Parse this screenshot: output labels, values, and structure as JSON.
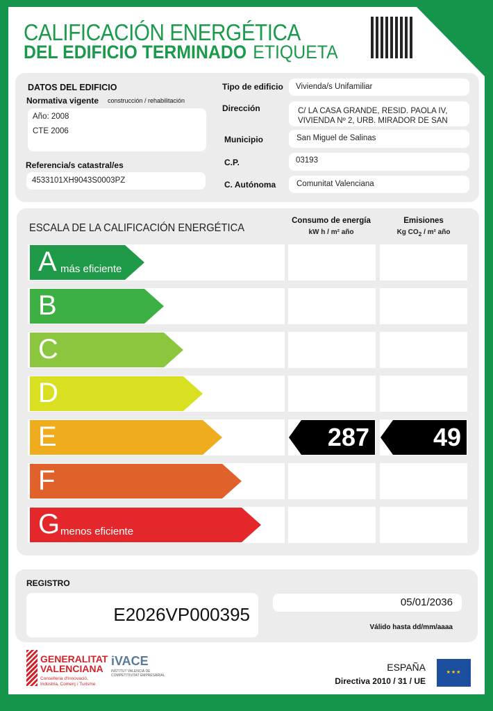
{
  "header": {
    "title_line1": "CALIFICACIÓN ENERGÉTICA",
    "title_line2": "DEL EDIFICIO  TERMINADO",
    "title_suffix": "ETIQUETA"
  },
  "building": {
    "section_title": "DATOS DEL EDIFICIO",
    "normativa_label": "Normativa vigente",
    "normativa_sub": "construcción / rehabilitación",
    "year": "Año: 2008",
    "norm": "CTE 2006",
    "catastral_label": "Referencia/s catastral/es",
    "catastral": "4533101XH9043S0003PZ",
    "tipo_label": "Tipo de edificio",
    "tipo": "Vivienda/s Unifamiliar",
    "direccion_label": "Dirección",
    "direccion_1": "C/ LA CASA GRANDE, RESID. PAOLA IV,",
    "direccion_2": "VIVIENDA Nº 2, URB. MIRADOR DE SAN",
    "municipio_label": "Municipio",
    "municipio": "San Miguel de Salinas",
    "cp_label": "C.P.",
    "cp": "03193",
    "ca_label": "C. Autónoma",
    "ca": "Comunitat Valenciana"
  },
  "scale": {
    "title": "ESCALA DE LA CALIFICACIÓN ENERGÉTICA",
    "consumo_label": "Consumo de energía",
    "consumo_unit": "kW h / m² año",
    "emisiones_label": "Emisiones",
    "emisiones_unit_pre": "Kg CO",
    "emisiones_unit_sub": "2",
    "emisiones_unit_post": " / m² año",
    "ratings": [
      {
        "letter": "A",
        "sub": "más eficiente",
        "color": "#1e9a48"
      },
      {
        "letter": "B",
        "sub": "",
        "color": "#3cb043"
      },
      {
        "letter": "C",
        "sub": "",
        "color": "#8cc63f"
      },
      {
        "letter": "D",
        "sub": "",
        "color": "#d9e021"
      },
      {
        "letter": "E",
        "sub": "",
        "color": "#efac1c"
      },
      {
        "letter": "F",
        "sub": "",
        "color": "#e1612a"
      },
      {
        "letter": "G",
        "sub": "menos eficiente",
        "color": "#e3272a"
      }
    ],
    "current_rating": "E",
    "consumo_value": "287",
    "emisiones_value": "49"
  },
  "registro": {
    "label": "REGISTRO",
    "number": "E2026VP000395",
    "date": "05/01/2036",
    "valid_label": "Válido hasta dd/mm/aaaa"
  },
  "footer": {
    "gv_line1": "GENERALITAT",
    "gv_line2": "VALENCIANA",
    "gv_sub1": "Conselleria d'Innovació,",
    "gv_sub2": "Indústria, Comerç i Turisme",
    "ivace": "iVACE",
    "ivace_sub1": "INSTITUT VALENCIÀ DE",
    "ivace_sub2": "COMPETITIVITAT EMPRESARIAL",
    "country": "ESPAÑA",
    "directive": "Directiva 2010 / 31 / UE"
  }
}
